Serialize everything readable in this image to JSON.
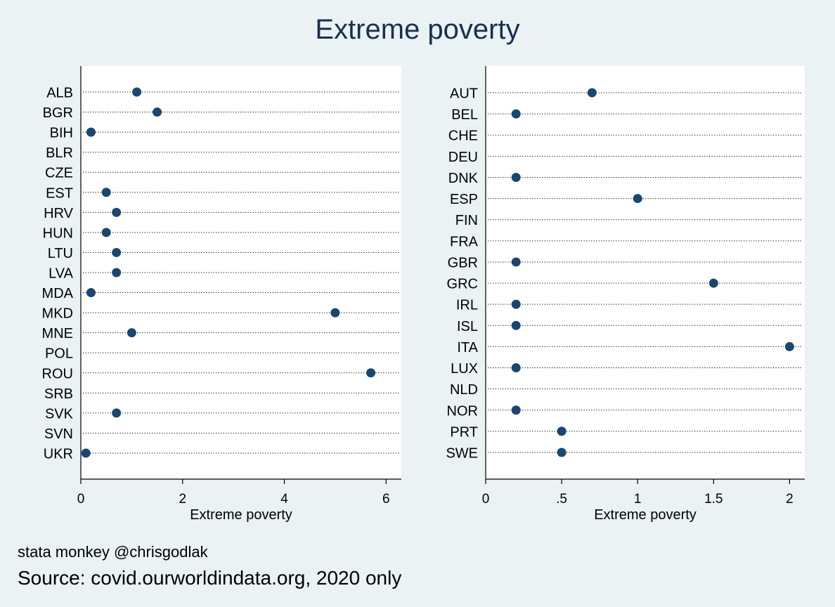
{
  "title": "Extreme poverty",
  "credit": "stata monkey @chrisgodlak",
  "source": "Source: covid.ourworldindata.org, 2020 only",
  "colors": {
    "background": "#eaf2f3",
    "plot_area": "#ffffff",
    "marker": "#1a476f",
    "title": "#1a2f4f"
  },
  "chart_data": [
    {
      "type": "scatter",
      "xlabel": "Extreme poverty",
      "xlim": [
        0,
        6.3
      ],
      "xticks": [
        0,
        2,
        4,
        6
      ],
      "xtick_labels": [
        "0",
        "2",
        "4",
        "6"
      ],
      "grid": "dotted horizontal lines",
      "categories": [
        "ALB",
        "BGR",
        "BIH",
        "BLR",
        "CZE",
        "EST",
        "HRV",
        "HUN",
        "LTU",
        "LVA",
        "MDA",
        "MKD",
        "MNE",
        "POL",
        "ROU",
        "SRB",
        "SVK",
        "SVN",
        "UKR"
      ],
      "values": [
        1.1,
        1.5,
        0.2,
        null,
        null,
        0.5,
        0.7,
        0.5,
        0.7,
        0.7,
        0.2,
        5.0,
        1.0,
        null,
        5.7,
        null,
        0.7,
        null,
        0.1
      ]
    },
    {
      "type": "scatter",
      "xlabel": "Extreme poverty",
      "xlim": [
        0,
        2.1
      ],
      "xticks": [
        0,
        0.5,
        1,
        1.5,
        2
      ],
      "xtick_labels": [
        "0",
        ".5",
        "1",
        "1.5",
        "2"
      ],
      "grid": "dotted horizontal lines",
      "categories": [
        "AUT",
        "BEL",
        "CHE",
        "DEU",
        "DNK",
        "ESP",
        "FIN",
        "FRA",
        "GBR",
        "GRC",
        "IRL",
        "ISL",
        "ITA",
        "LUX",
        "NLD",
        "NOR",
        "PRT",
        "SWE"
      ],
      "values": [
        0.7,
        0.2,
        null,
        null,
        0.2,
        1.0,
        null,
        null,
        0.2,
        1.5,
        0.2,
        0.2,
        2.0,
        0.2,
        null,
        0.2,
        0.5,
        0.5
      ]
    }
  ]
}
